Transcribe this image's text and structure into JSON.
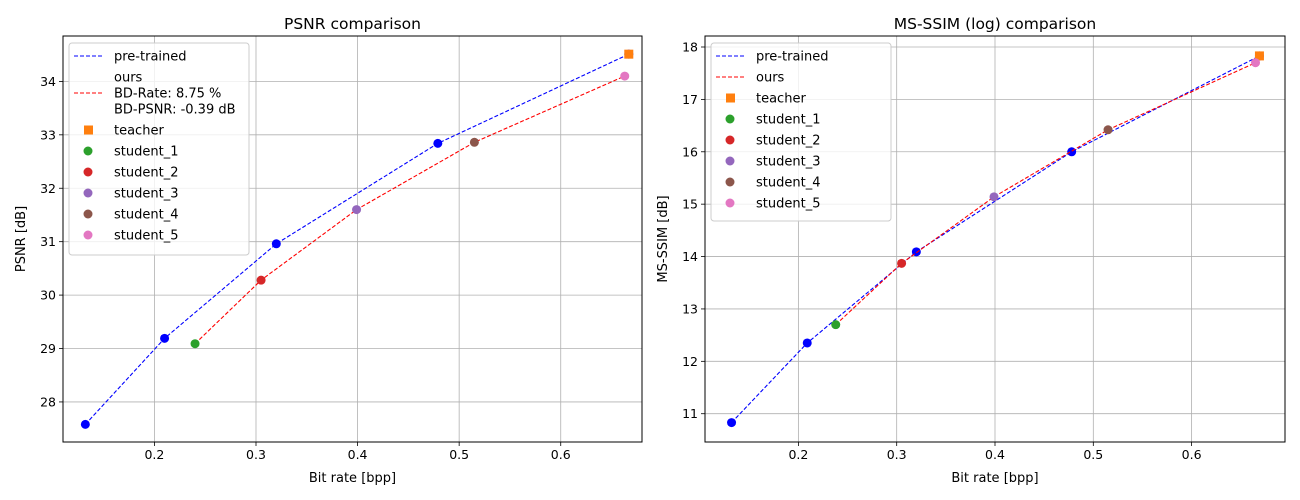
{
  "chart_data": [
    {
      "type": "line",
      "title": "PSNR comparison",
      "xlabel": "Bit rate [bpp]",
      "ylabel": "PSNR [dB]",
      "xlim": [
        0.11,
        0.68
      ],
      "ylim": [
        27.25,
        34.85
      ],
      "xticks": [
        0.2,
        0.3,
        0.4,
        0.5,
        0.6
      ],
      "xtick_labels": [
        "0.2",
        "0.3",
        "0.4",
        "0.5",
        "0.6"
      ],
      "yticks": [
        28,
        29,
        30,
        31,
        32,
        33,
        34
      ],
      "ytick_labels": [
        "28",
        "29",
        "30",
        "31",
        "32",
        "33",
        "34"
      ],
      "grid": true,
      "legend_position": "top-left",
      "series": [
        {
          "name": "pre-trained",
          "style": "dashed-line-with-dots",
          "color": "#0000ff",
          "x": [
            0.132,
            0.21,
            0.32,
            0.479,
            0.667
          ],
          "y": [
            27.58,
            29.19,
            30.96,
            32.84,
            34.51
          ]
        },
        {
          "name": "ours",
          "style": "dashed-line",
          "color": "#ff0000",
          "x": [
            0.24,
            0.305,
            0.399,
            0.515,
            0.663
          ],
          "y": [
            29.09,
            30.28,
            31.6,
            32.86,
            34.1
          ]
        },
        {
          "name": "teacher",
          "style": "square",
          "color": "#ff7f0e",
          "x": [
            0.667
          ],
          "y": [
            34.51
          ]
        },
        {
          "name": "student_1",
          "style": "circle",
          "color": "#2ca02c",
          "x": [
            0.24
          ],
          "y": [
            29.09
          ]
        },
        {
          "name": "student_2",
          "style": "circle",
          "color": "#d62728",
          "x": [
            0.305
          ],
          "y": [
            30.28
          ]
        },
        {
          "name": "student_3",
          "style": "circle",
          "color": "#9467bd",
          "x": [
            0.399
          ],
          "y": [
            31.6
          ]
        },
        {
          "name": "student_4",
          "style": "circle",
          "color": "#8c564b",
          "x": [
            0.515
          ],
          "y": [
            32.86
          ]
        },
        {
          "name": "student_5",
          "style": "circle",
          "color": "#e377c2",
          "x": [
            0.663
          ],
          "y": [
            34.1
          ]
        }
      ],
      "legend": [
        {
          "lines": [
            "pre-trained"
          ],
          "marker": "dashed-blue"
        },
        {
          "lines": [
            "ours",
            "BD-Rate: 8.75 %",
            "BD-PSNR: -0.39 dB"
          ],
          "marker": "dashed-red"
        },
        {
          "lines": [
            "teacher"
          ],
          "marker": "square-orange"
        },
        {
          "lines": [
            "student_1"
          ],
          "marker": "circle-green"
        },
        {
          "lines": [
            "student_2"
          ],
          "marker": "circle-red"
        },
        {
          "lines": [
            "student_3"
          ],
          "marker": "circle-purple"
        },
        {
          "lines": [
            "student_4"
          ],
          "marker": "circle-brown"
        },
        {
          "lines": [
            "student_5"
          ],
          "marker": "circle-pink"
        }
      ]
    },
    {
      "type": "line",
      "title": "MS-SSIM (log) comparison",
      "xlabel": "Bit rate [bpp]",
      "ylabel": "MS-SSIM [dB]",
      "xlim": [
        0.105,
        0.695
      ],
      "ylim": [
        10.46,
        18.21
      ],
      "xticks": [
        0.2,
        0.3,
        0.4,
        0.5,
        0.6
      ],
      "xtick_labels": [
        "0.2",
        "0.3",
        "0.4",
        "0.5",
        "0.6"
      ],
      "yticks": [
        11,
        12,
        13,
        14,
        15,
        16,
        17,
        18
      ],
      "ytick_labels": [
        "11",
        "12",
        "13",
        "14",
        "15",
        "16",
        "17",
        "18"
      ],
      "grid": true,
      "legend_position": "top-left",
      "series": [
        {
          "name": "pre-trained",
          "style": "dashed-line-with-dots",
          "color": "#0000ff",
          "x": [
            0.132,
            0.209,
            0.32,
            0.478,
            0.669
          ],
          "y": [
            10.83,
            12.35,
            14.09,
            16.0,
            17.83
          ]
        },
        {
          "name": "ours",
          "style": "dashed-line",
          "color": "#ff0000",
          "x": [
            0.238,
            0.305,
            0.399,
            0.515,
            0.665
          ],
          "y": [
            12.7,
            13.87,
            15.14,
            16.42,
            17.7
          ]
        },
        {
          "name": "teacher",
          "style": "square",
          "color": "#ff7f0e",
          "x": [
            0.669
          ],
          "y": [
            17.83
          ]
        },
        {
          "name": "student_1",
          "style": "circle",
          "color": "#2ca02c",
          "x": [
            0.238
          ],
          "y": [
            12.7
          ]
        },
        {
          "name": "student_2",
          "style": "circle",
          "color": "#d62728",
          "x": [
            0.305
          ],
          "y": [
            13.87
          ]
        },
        {
          "name": "student_3",
          "style": "circle",
          "color": "#9467bd",
          "x": [
            0.399
          ],
          "y": [
            15.14
          ]
        },
        {
          "name": "student_4",
          "style": "circle",
          "color": "#8c564b",
          "x": [
            0.515
          ],
          "y": [
            16.42
          ]
        },
        {
          "name": "student_5",
          "style": "circle",
          "color": "#e377c2",
          "x": [
            0.665
          ],
          "y": [
            17.7
          ]
        }
      ],
      "legend": [
        {
          "lines": [
            "pre-trained"
          ],
          "marker": "dashed-blue"
        },
        {
          "lines": [
            "ours"
          ],
          "marker": "dashed-red"
        },
        {
          "lines": [
            "teacher"
          ],
          "marker": "square-orange"
        },
        {
          "lines": [
            "student_1"
          ],
          "marker": "circle-green"
        },
        {
          "lines": [
            "student_2"
          ],
          "marker": "circle-red"
        },
        {
          "lines": [
            "student_3"
          ],
          "marker": "circle-purple"
        },
        {
          "lines": [
            "student_4"
          ],
          "marker": "circle-brown"
        },
        {
          "lines": [
            "student_5"
          ],
          "marker": "circle-pink"
        }
      ]
    }
  ]
}
